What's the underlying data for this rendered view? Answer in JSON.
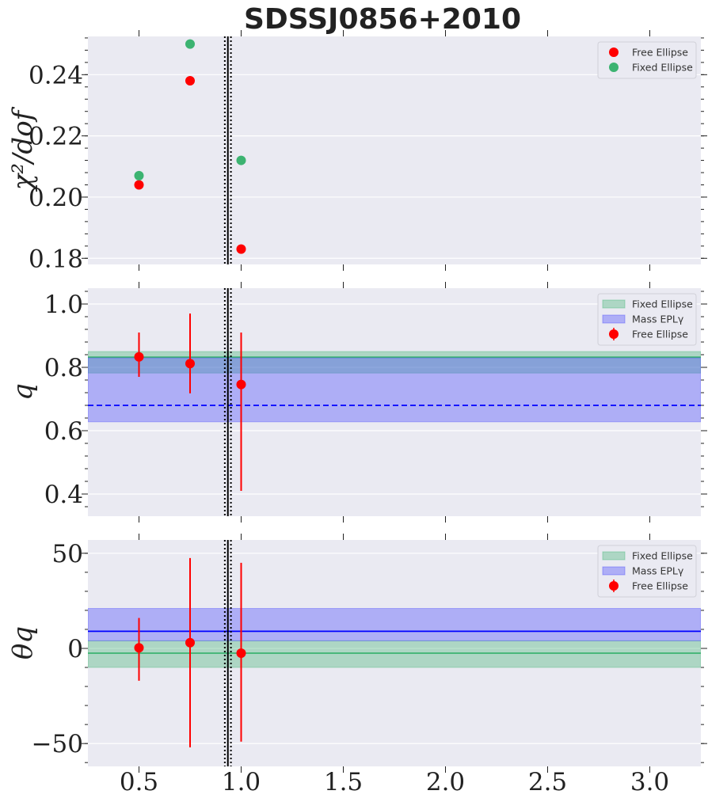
{
  "title": "SDSSJ0856+2010",
  "chart_data": [
    {
      "type": "scatter",
      "ylabel": "χ²/dof",
      "xlim": [
        0.25,
        3.25
      ],
      "ylim": [
        0.178,
        0.2525
      ],
      "yticks": [
        0.18,
        0.2,
        0.22,
        0.24
      ],
      "ytick_labels": [
        "0.18",
        "0.20",
        "0.22",
        "0.24"
      ],
      "grid": true,
      "legend_position": "top-right",
      "series": [
        {
          "name": "Free Ellipse",
          "color": "#ff0000",
          "x": [
            0.5,
            0.75,
            1.0
          ],
          "y": [
            0.204,
            0.238,
            0.183
          ]
        },
        {
          "name": "Fixed Ellipse",
          "color": "#3cb371",
          "x": [
            0.5,
            0.75,
            1.0
          ],
          "y": [
            0.207,
            0.25,
            0.212
          ]
        }
      ],
      "vlines": [
        {
          "x": 0.92,
          "style": "dotted"
        },
        {
          "x": 0.935,
          "style": "solid"
        },
        {
          "x": 0.95,
          "style": "dotted"
        }
      ]
    },
    {
      "type": "scatter",
      "ylabel": "q",
      "xlim": [
        0.25,
        3.25
      ],
      "ylim": [
        0.33,
        1.05
      ],
      "yticks": [
        0.4,
        0.6,
        0.8,
        1.0
      ],
      "ytick_labels": [
        "0.4",
        "0.6",
        "0.8",
        "1.0"
      ],
      "grid": true,
      "legend_position": "top-right",
      "bands": [
        {
          "name": "Fixed Ellipse",
          "color": "#3cb371",
          "low": 0.782,
          "high": 0.85,
          "center": 0.832,
          "line": "solid"
        },
        {
          "name": "Mass EPLγ",
          "color": "#4040ff",
          "low": 0.628,
          "high": 0.83,
          "center": 0.68,
          "line": "dashed"
        }
      ],
      "series": [
        {
          "name": "Free Ellipse",
          "color": "#ff0000",
          "x": [
            0.5,
            0.75,
            1.0
          ],
          "y": [
            0.833,
            0.812,
            0.746
          ],
          "yerr_low": [
            0.77,
            0.718,
            0.41
          ],
          "yerr_high": [
            0.91,
            0.97,
            0.91
          ]
        }
      ],
      "vlines": [
        {
          "x": 0.92,
          "style": "dotted"
        },
        {
          "x": 0.935,
          "style": "solid"
        },
        {
          "x": 0.95,
          "style": "dotted"
        }
      ]
    },
    {
      "type": "scatter",
      "ylabel": "θq",
      "xlim": [
        0.25,
        3.25
      ],
      "ylim": [
        -62,
        57
      ],
      "yticks": [
        -50,
        0,
        50
      ],
      "ytick_labels": [
        "−50",
        "0",
        "50"
      ],
      "xticks": [
        0.5,
        1.0,
        1.5,
        2.0,
        2.5,
        3.0
      ],
      "xtick_labels": [
        "0.5",
        "1.0",
        "1.5",
        "2.0",
        "2.5",
        "3.0"
      ],
      "grid": true,
      "legend_position": "top-right",
      "bands": [
        {
          "name": "Fixed Ellipse",
          "color": "#3cb371",
          "low": -10,
          "high": 4,
          "center": -2.5,
          "line": "solid"
        },
        {
          "name": "Mass EPLγ",
          "color": "#4040ff",
          "low": 4,
          "high": 21,
          "center": 9,
          "line": "solid"
        }
      ],
      "series": [
        {
          "name": "Free Ellipse",
          "color": "#ff0000",
          "x": [
            0.5,
            0.75,
            1.0
          ],
          "y": [
            0.3,
            3,
            -2.5
          ],
          "yerr_low": [
            -17,
            -52,
            -49
          ],
          "yerr_high": [
            16,
            47.5,
            45
          ]
        }
      ],
      "vlines": [
        {
          "x": 0.92,
          "style": "dotted"
        },
        {
          "x": 0.935,
          "style": "solid"
        },
        {
          "x": 0.95,
          "style": "dotted"
        }
      ]
    }
  ]
}
